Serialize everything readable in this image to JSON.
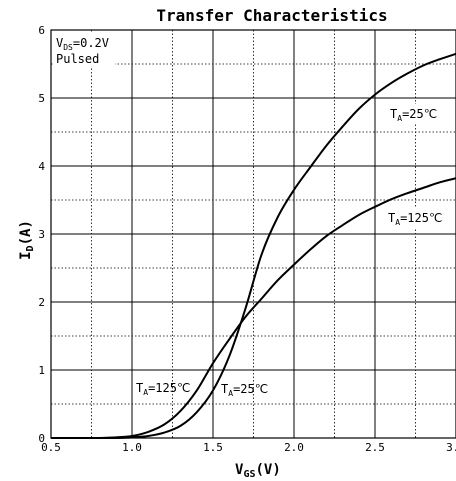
{
  "chart_data": {
    "type": "line",
    "title": "Transfer Characteristics",
    "xlabel": {
      "main": "V",
      "sub": "GS",
      "unit": "(V)"
    },
    "ylabel": {
      "main": "I",
      "sub": "D",
      "unit": "(A)"
    },
    "xlim": [
      0.5,
      3.0
    ],
    "ylim": [
      0,
      6
    ],
    "x_ticks": [
      "0.5",
      "1.0",
      "1.5",
      "2.0",
      "2.5",
      "3.0"
    ],
    "y_ticks": [
      "0",
      "1",
      "2",
      "3",
      "4",
      "5",
      "6"
    ],
    "grid": {
      "major_solid": true,
      "minor_dotted": true
    },
    "conditions": {
      "vds": {
        "main": "V",
        "sub": "DS",
        "value": "=0.2V"
      },
      "mode": "Pulsed"
    },
    "series": [
      {
        "name": "TA=25℃",
        "label": {
          "main": "T",
          "sub": "A",
          "value": "=25℃"
        },
        "color": "#000000",
        "x": [
          0.5,
          0.9,
          1.0,
          1.1,
          1.2,
          1.3,
          1.4,
          1.5,
          1.6,
          1.7,
          1.8,
          1.9,
          2.0,
          2.1,
          2.2,
          2.3,
          2.4,
          2.5,
          2.6,
          2.7,
          2.8,
          2.9,
          3.0
        ],
        "y": [
          0.0,
          0.0,
          0.01,
          0.03,
          0.08,
          0.18,
          0.38,
          0.7,
          1.2,
          1.9,
          2.7,
          3.25,
          3.65,
          3.98,
          4.3,
          4.58,
          4.84,
          5.05,
          5.22,
          5.36,
          5.48,
          5.57,
          5.65
        ]
      },
      {
        "name": "TA=125℃",
        "label": {
          "main": "T",
          "sub": "A",
          "value": "=125℃"
        },
        "color": "#000000",
        "x": [
          0.5,
          0.8,
          0.9,
          1.0,
          1.1,
          1.2,
          1.3,
          1.4,
          1.5,
          1.6,
          1.7,
          1.8,
          1.9,
          2.0,
          2.1,
          2.2,
          2.3,
          2.4,
          2.5,
          2.6,
          2.7,
          2.8,
          2.9,
          3.0
        ],
        "y": [
          0.0,
          0.0,
          0.01,
          0.03,
          0.09,
          0.2,
          0.4,
          0.7,
          1.1,
          1.45,
          1.78,
          2.05,
          2.32,
          2.55,
          2.77,
          2.97,
          3.13,
          3.28,
          3.4,
          3.51,
          3.6,
          3.68,
          3.76,
          3.82
        ]
      }
    ]
  }
}
